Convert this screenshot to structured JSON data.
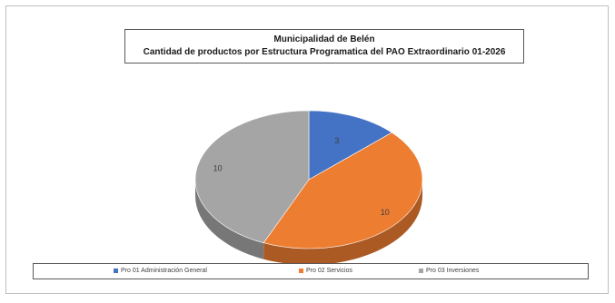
{
  "chart_data": {
    "type": "pie",
    "title": "Municipalidad de Belén",
    "subtitle": "Cantidad de productos por Estructura Programatica del PAO Extraordinario 01-2026",
    "categories": [
      "Pro 01 Administración General",
      "Pro 02 Servicios",
      "Pro 03 Inversiones"
    ],
    "values": [
      3,
      10,
      10
    ],
    "colors": [
      "#4472C4",
      "#ED7D31",
      "#A5A5A5"
    ],
    "legend": "bottom",
    "style": "3d-tilted"
  }
}
